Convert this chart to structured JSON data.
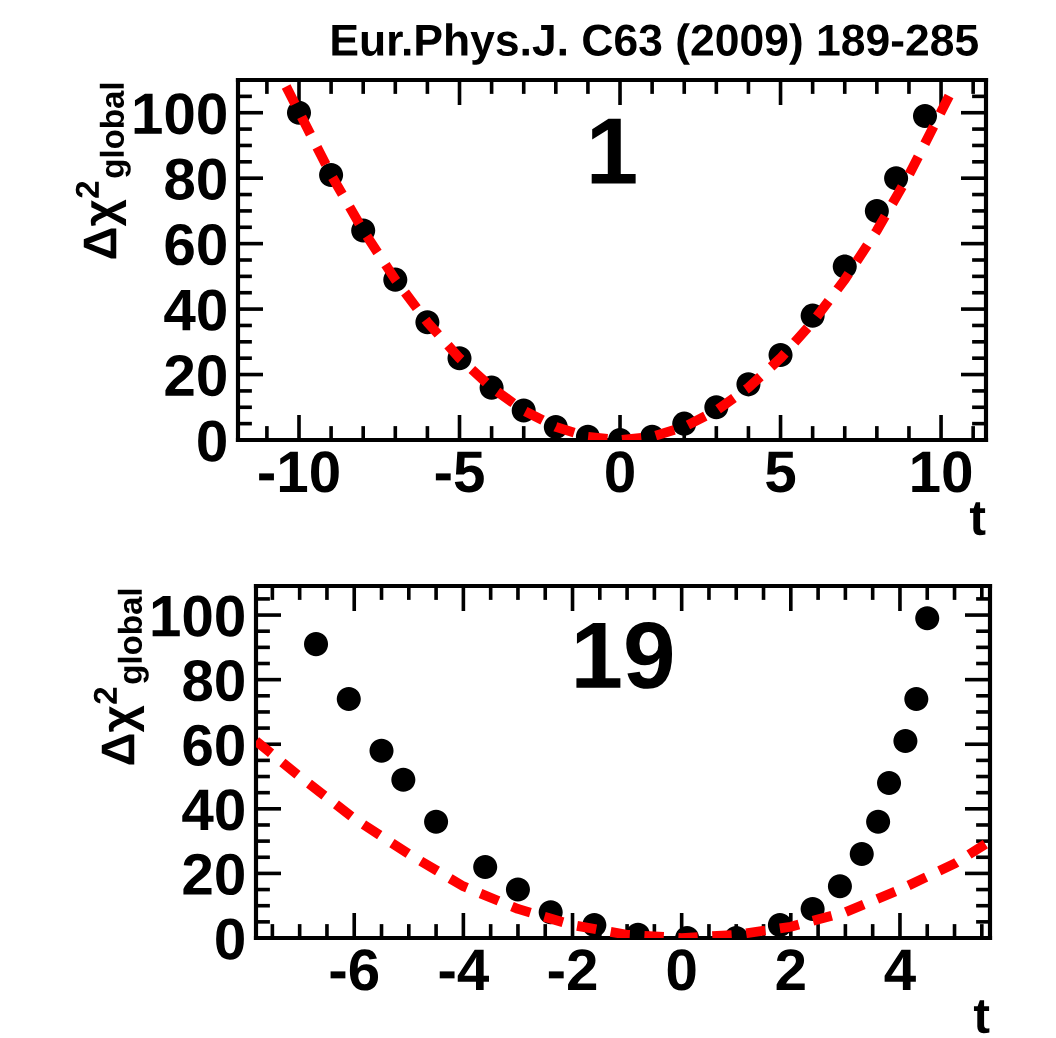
{
  "chart_data": [
    {
      "type": "scatter",
      "title": "Eur.Phys.J. C63 (2009) 189-285",
      "xlabel": "t",
      "ylabel": "Δχ$^{2}$$_{global}$",
      "annotations": [
        "1"
      ],
      "xlim": [
        -11.9,
        11.4
      ],
      "ylim": [
        0,
        110
      ],
      "xticks": [
        -10,
        -5,
        0,
        5,
        10
      ],
      "yticks": [
        0,
        20,
        40,
        60,
        80,
        100
      ],
      "series": [
        {
          "color": "#000000",
          "marker": "circle",
          "x": [
            -10,
            -9,
            -8,
            -7,
            -6,
            -5,
            -4,
            -3,
            -2,
            -1,
            0,
            1,
            2,
            3,
            4,
            5,
            6,
            7,
            8,
            8.6,
            9.5
          ],
          "values": [
            100,
            81,
            64,
            49,
            36,
            25,
            16,
            9,
            4,
            1,
            0,
            1,
            5,
            10,
            17,
            26,
            38,
            53,
            70,
            80,
            99
          ]
        },
        {
          "type": "line",
          "color": "#ff0000",
          "line_style": "dashed",
          "x": [
            -10.4,
            -9,
            -8,
            -7,
            -6,
            -5,
            -4,
            -3,
            -2,
            -1,
            0,
            1,
            2,
            3,
            4,
            5,
            6,
            7,
            8,
            9,
            10.4
          ],
          "values": [
            108,
            81,
            64,
            49,
            36,
            25,
            16,
            9,
            4,
            1,
            0,
            1,
            4,
            9,
            16,
            25,
            36,
            49,
            64,
            81,
            108
          ]
        }
      ]
    },
    {
      "type": "scatter",
      "xlabel": "t",
      "ylabel": "Δχ$^{2}$$_{global}$",
      "annotations": [
        "19"
      ],
      "xlim": [
        -7.8,
        5.65
      ],
      "ylim": [
        0,
        109
      ],
      "xticks": [
        -6,
        -4,
        -2,
        0,
        2,
        4
      ],
      "yticks": [
        0,
        20,
        40,
        60,
        80,
        100
      ],
      "series": [
        {
          "color": "#000000",
          "marker": "circle",
          "x": [
            -6.7,
            -6.1,
            -5.5,
            -5.1,
            -4.5,
            -3.6,
            -3.0,
            -2.4,
            -1.6,
            -0.8,
            0.1,
            1.0,
            1.8,
            2.4,
            2.9,
            3.3,
            3.6,
            3.8,
            4.1,
            4.3,
            4.5
          ],
          "values": [
            91,
            74,
            58,
            49,
            36,
            22,
            15,
            8,
            4,
            1,
            0,
            0,
            4,
            9,
            16,
            26,
            36,
            48,
            61,
            74,
            99
          ]
        },
        {
          "type": "line",
          "color": "#ff0000",
          "line_style": "dashed",
          "x": [
            -7.8,
            -7,
            -6,
            -5,
            -4,
            -3,
            -2,
            -1,
            0,
            1,
            2,
            3,
            4,
            5,
            5.65
          ],
          "values": [
            61,
            50,
            37,
            26,
            16,
            9,
            4,
            1,
            0,
            1,
            3.5,
            8,
            15,
            23,
            30
          ]
        }
      ]
    }
  ]
}
